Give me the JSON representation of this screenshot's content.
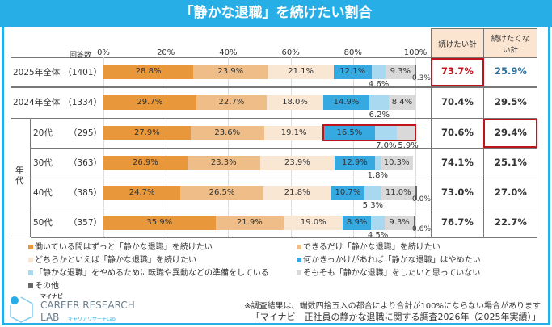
{
  "title": "「静かな退職」を続けたい割合",
  "chart_data": {
    "type": "bar",
    "orientation": "horizontal",
    "stacked": true,
    "xlim": [
      0,
      100
    ],
    "x_ticks": [
      "0%",
      "20%",
      "40%",
      "60%",
      "80%",
      "100%"
    ],
    "count_header": "回答数",
    "group_label": "年代",
    "categories": [
      "2025年全体",
      "2024年全体",
      "20代",
      "30代",
      "40代",
      "50代"
    ],
    "counts": [
      "（1401）",
      "（1334）",
      "（295）",
      "（363）",
      "（385）",
      "（357）"
    ],
    "series": [
      {
        "name": "働いている間はずっと「静かな退職」を続けたい",
        "color": "#e8973a",
        "values": [
          28.8,
          29.7,
          27.9,
          26.9,
          24.7,
          35.9
        ]
      },
      {
        "name": "できるだけ「静かな退職」を続けたい",
        "color": "#efbd87",
        "values": [
          23.9,
          22.7,
          23.6,
          23.3,
          26.5,
          21.9
        ]
      },
      {
        "name": "どちらかといえば「静かな退職」を続けたい",
        "color": "#fae7d3",
        "values": [
          21.1,
          18.0,
          19.1,
          23.9,
          21.8,
          19.0
        ]
      },
      {
        "name": "何かきっかけがあれば「静かな退職」はやめたい",
        "color": "#36a9e1",
        "values": [
          12.1,
          14.9,
          16.5,
          12.9,
          10.7,
          8.9
        ]
      },
      {
        "name": "「静かな退職」をやめるために転職や異動などの準備をしている",
        "color": "#a8d9f0",
        "values": [
          4.6,
          6.2,
          7.0,
          1.8,
          5.3,
          4.5
        ]
      },
      {
        "name": "そもそも「静かな退職」をしたいと思っていない",
        "color": "#d9d9d9",
        "values": [
          9.3,
          8.4,
          5.9,
          10.3,
          11.0,
          9.3
        ]
      },
      {
        "name": "その他",
        "color": "#666666",
        "values": [
          0.3,
          null,
          null,
          null,
          0.0,
          0.6
        ]
      }
    ],
    "table": {
      "headers": [
        "続けたい計",
        "続けたくない計"
      ],
      "want": [
        "73.7%",
        "70.4%",
        "70.6%",
        "74.1%",
        "73.0%",
        "76.7%"
      ],
      "not_want": [
        "25.9%",
        "29.5%",
        "29.4%",
        "25.1%",
        "27.0%",
        "22.7%"
      ]
    },
    "colors": {
      "accent_red": "#c0141d",
      "want_2025": "#c0141d",
      "notwant_2025": "#2a6f9e",
      "header_bg": "#fbe5d0"
    }
  },
  "notes": [
    "※調査結果は、端数四捨五入の都合により合計が100%にならない場合があります",
    "「マイナビ　正社員の静かな退職に関する調査2026年（2025年実績）」"
  ],
  "logo": {
    "brand": "マイナビ",
    "line1": "CAREER RESEARCH",
    "line2": "LAB",
    "sub": "キャリアリサーチLab"
  }
}
